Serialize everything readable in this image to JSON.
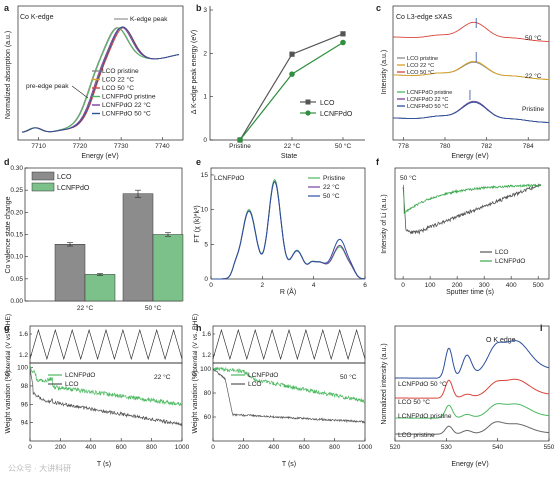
{
  "chart_data": [
    {
      "panel": "a",
      "type": "line",
      "title": "Co K-edge",
      "xlabel": "Energy (eV)",
      "ylabel": "Normalized absorption (a.u.)",
      "xlim": [
        7705,
        7745
      ],
      "xticks": [
        "7710",
        "7720",
        "7730",
        "7740"
      ],
      "annotations": [
        "K-edge peak",
        "pre-edge peak"
      ],
      "legend_position": "bottom-right",
      "series": [
        {
          "name": "LCO pristine",
          "color": "#8a8a8a"
        },
        {
          "name": "LCO 22 °C",
          "color": "#d9a11d"
        },
        {
          "name": "LCO 50 °C",
          "color": "#d9433a"
        },
        {
          "name": "LCNFPdO pristine",
          "color": "#4bb85f"
        },
        {
          "name": "LCNFPdO 22 °C",
          "color": "#7b3fa0"
        },
        {
          "name": "LCNFPdO 50 °C",
          "color": "#2c4f9e"
        }
      ]
    },
    {
      "panel": "b",
      "type": "line",
      "title": "",
      "xlabel": "State",
      "ylabel": "Δ K-edge peak energy (eV)",
      "categories": [
        "Pristine",
        "22 °C",
        "50 °C"
      ],
      "ylim": [
        0,
        3
      ],
      "yticks": [
        "0",
        "1",
        "2",
        "3"
      ],
      "legend_position": "bottom-right",
      "series": [
        {
          "name": "LCO",
          "color": "#555555",
          "marker": "square",
          "values": [
            0,
            1.98,
            2.45
          ]
        },
        {
          "name": "LCNFPdO",
          "color": "#2f8f3f",
          "marker": "circle",
          "values": [
            0,
            1.52,
            2.25
          ]
        }
      ]
    },
    {
      "panel": "c",
      "type": "line",
      "title": "Co L3-edge sXAS",
      "xlabel": "Energy (eV)",
      "ylabel": "Intensity (a.u.)",
      "xlim": [
        777.5,
        785
      ],
      "xticks": [
        "778",
        "780",
        "782",
        "784"
      ],
      "annotations": [
        "50 °C",
        "22 °C",
        "Pristine"
      ],
      "series": [
        {
          "name": "LCO pristine",
          "color": "#8a8a8a"
        },
        {
          "name": "LCO 22 °C",
          "color": "#d9a11d"
        },
        {
          "name": "LCO 50 °C",
          "color": "#d9433a"
        },
        {
          "name": "LCNFPdO pristine",
          "color": "#4bb85f"
        },
        {
          "name": "LCNFPdO 22 °C",
          "color": "#7b3fa0"
        },
        {
          "name": "LCNFPdO 50 °C",
          "color": "#2c4f9e"
        }
      ]
    },
    {
      "panel": "d",
      "type": "bar",
      "title": "",
      "xlabel": "",
      "ylabel": "Co valence state change",
      "categories": [
        "22 °C",
        "50 °C"
      ],
      "ylim": [
        0,
        0.3
      ],
      "yticks": [
        "0.00",
        "0.05",
        "0.10",
        "0.15",
        "0.20",
        "0.25",
        "0.30"
      ],
      "legend_position": "top-left",
      "series": [
        {
          "name": "LCO",
          "color": "#8c8c8c",
          "values": [
            0.128,
            0.242
          ],
          "errors": [
            0.004,
            0.008
          ]
        },
        {
          "name": "LCNFPdO",
          "color": "#7cc08a",
          "values": [
            0.06,
            0.15
          ],
          "errors": [
            0.002,
            0.004
          ]
        }
      ]
    },
    {
      "panel": "e",
      "type": "line",
      "title": "LCNFPdO",
      "xlabel": "R (Å)",
      "ylabel": "FT (χ (k)*k³)",
      "xlim": [
        0,
        6
      ],
      "ylim": [
        0,
        16
      ],
      "xticks": [
        "0",
        "2",
        "4",
        "6"
      ],
      "yticks": [
        "0",
        "5",
        "10",
        "15"
      ],
      "legend_position": "top-right",
      "series": [
        {
          "name": "Pristine",
          "color": "#4bb85f"
        },
        {
          "name": "22 °C",
          "color": "#7b3fa0"
        },
        {
          "name": "50 °C",
          "color": "#2c4f9e"
        }
      ]
    },
    {
      "panel": "f",
      "type": "line",
      "title": "50 °C",
      "xlabel": "Sputter time (s)",
      "ylabel": "Intensity of Li (a.u.)",
      "xlim": [
        -30,
        540
      ],
      "xticks": [
        "0",
        "100",
        "200",
        "300",
        "400",
        "500"
      ],
      "legend_position": "bottom-right",
      "series": [
        {
          "name": "LCO",
          "color": "#555555"
        },
        {
          "name": "LCNFPdO",
          "color": "#3aa84c"
        }
      ]
    },
    {
      "panel": "g",
      "type": "line",
      "title": "22 °C",
      "xlabel": "T (s)",
      "ylabel": "Weight variation (%)",
      "top_ylabel": "Potential (V vs. RHE)",
      "top_yticks": [
        "1.6",
        "1.2"
      ],
      "xlim": [
        0,
        1000
      ],
      "ylim": [
        92,
        100.5
      ],
      "xticks": [
        "0",
        "200",
        "400",
        "600",
        "800",
        "1000"
      ],
      "yticks": [
        "94",
        "96",
        "98",
        "100"
      ],
      "legend_position": "top-center",
      "series": [
        {
          "name": "LCNFPdO",
          "color": "#4bb85f"
        },
        {
          "name": "LCO",
          "color": "#555555"
        }
      ]
    },
    {
      "panel": "h",
      "type": "line",
      "title": "50 °C",
      "xlabel": "T (s)",
      "ylabel": "Weight variation (%)",
      "top_ylabel": "Potential (V vs. RHE)",
      "top_yticks": [
        "1.6",
        "1.2"
      ],
      "xlim": [
        0,
        1000
      ],
      "ylim": [
        40,
        105
      ],
      "xticks": [
        "0",
        "200",
        "400",
        "600",
        "800",
        "1000"
      ],
      "yticks": [
        "60",
        "80",
        "100"
      ],
      "legend_position": "top-center",
      "series": [
        {
          "name": "LCNFPdO",
          "color": "#4bb85f"
        },
        {
          "name": "LCO",
          "color": "#555555"
        }
      ]
    },
    {
      "panel": "i",
      "type": "line",
      "title": "O K edge",
      "xlabel": "Energy (eV)",
      "ylabel": "Normalized intensity (a.u.)",
      "xlim": [
        520,
        550
      ],
      "xticks": [
        "520",
        "530",
        "540",
        "550"
      ],
      "series": [
        {
          "name": "LCNFPdO 50 °C",
          "color": "#2c4f9e"
        },
        {
          "name": "LCO 50 °C",
          "color": "#d9433a"
        },
        {
          "name": "LCNFPdO pristine",
          "color": "#4bb85f"
        },
        {
          "name": "LCO pristine",
          "color": "#666666"
        }
      ]
    }
  ],
  "watermark": "公众号 · 大讲科研"
}
